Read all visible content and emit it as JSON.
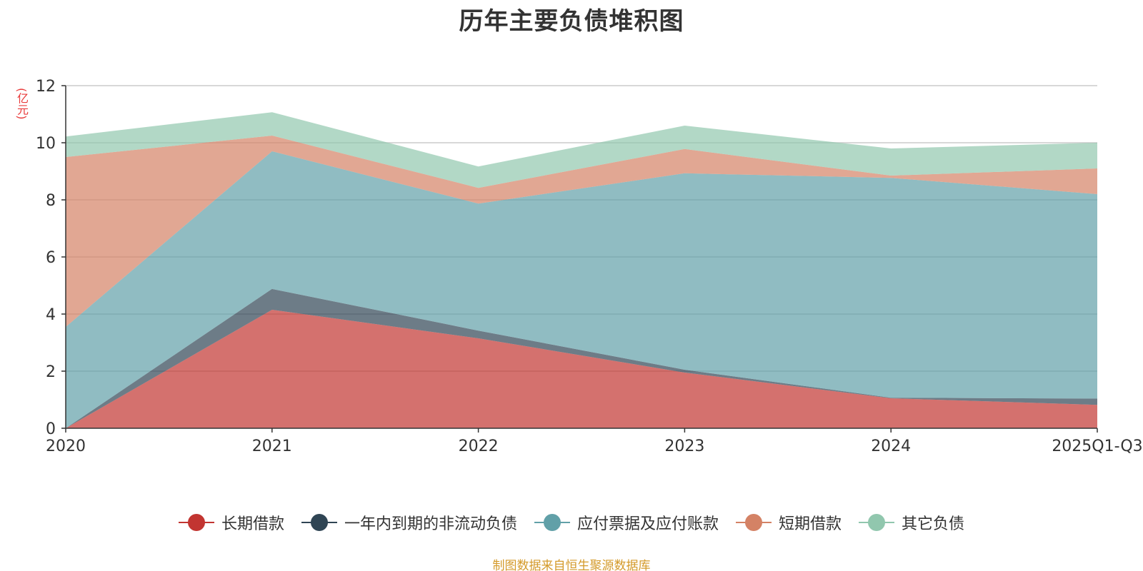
{
  "chart_data": {
    "type": "area",
    "stacked": true,
    "title": "历年主要负债堆积图",
    "ylabel": "(亿元)",
    "xlabel": "",
    "categories": [
      "2020",
      "2021",
      "2022",
      "2023",
      "2024",
      "2025Q1-Q3"
    ],
    "ylim": [
      0,
      12
    ],
    "yticks": [
      0,
      2,
      4,
      6,
      8,
      10,
      12
    ],
    "grid": true,
    "legend_position": "bottom",
    "series": [
      {
        "name": "长期借款",
        "color": "#c23531",
        "values": [
          0.0,
          4.15,
          3.15,
          1.95,
          1.05,
          0.82
        ]
      },
      {
        "name": "一年内到期的非流动负债",
        "color": "#2f4554",
        "values": [
          0.0,
          0.73,
          0.27,
          0.1,
          0.02,
          0.22
        ]
      },
      {
        "name": "应付票据及应付账款",
        "color": "#61a0a8",
        "values": [
          3.55,
          4.82,
          4.45,
          6.88,
          7.7,
          7.16
        ]
      },
      {
        "name": "短期借款",
        "color": "#d48265",
        "values": [
          5.95,
          0.55,
          0.55,
          0.85,
          0.08,
          0.9
        ]
      },
      {
        "name": "其它负债",
        "color": "#91c7ae",
        "values": [
          0.72,
          0.82,
          0.75,
          0.82,
          0.95,
          0.9
        ]
      }
    ]
  },
  "source_text": "制图数据来自恒生聚源数据库"
}
